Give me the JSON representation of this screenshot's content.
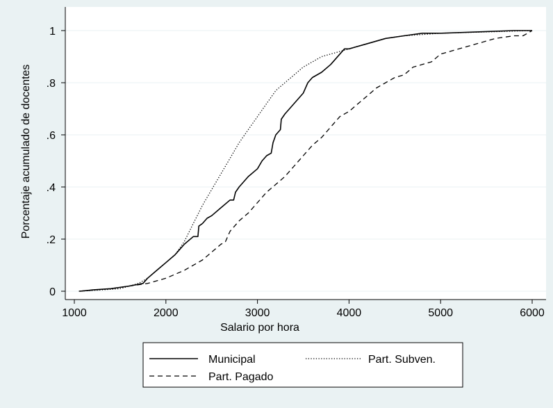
{
  "chart_data": {
    "type": "line",
    "title": "",
    "xlabel": "Salario por hora",
    "ylabel": "Porcentaje acumulado de docentes",
    "xlim": [
      1000,
      6000
    ],
    "ylim": [
      0,
      1
    ],
    "x_ticks": [
      1000,
      2000,
      3000,
      4000,
      5000,
      6000
    ],
    "x_tick_labels": [
      "1000",
      "2000",
      "3000",
      "4000",
      "5000",
      "6000"
    ],
    "y_ticks": [
      0,
      0.2,
      0.4,
      0.6,
      0.8,
      1
    ],
    "y_tick_labels": [
      "0",
      ".2",
      ".4",
      ".6",
      ".8",
      "1"
    ],
    "grid": "horizontal",
    "legend_position": "bottom",
    "colors": {
      "background": "#eaf2f3",
      "plot": "#ffffff",
      "line": "#000000",
      "grid": "#eaf2f3"
    },
    "series": [
      {
        "name": "Municipal",
        "style": "solid",
        "points": [
          [
            1060,
            0
          ],
          [
            1200,
            0.005
          ],
          [
            1400,
            0.01
          ],
          [
            1600,
            0.02
          ],
          [
            1750,
            0.03
          ],
          [
            1800,
            0.05
          ],
          [
            1900,
            0.08
          ],
          [
            2000,
            0.11
          ],
          [
            2100,
            0.14
          ],
          [
            2200,
            0.18
          ],
          [
            2300,
            0.21
          ],
          [
            2350,
            0.21
          ],
          [
            2360,
            0.25
          ],
          [
            2400,
            0.26
          ],
          [
            2450,
            0.28
          ],
          [
            2500,
            0.29
          ],
          [
            2600,
            0.32
          ],
          [
            2700,
            0.35
          ],
          [
            2740,
            0.35
          ],
          [
            2760,
            0.38
          ],
          [
            2800,
            0.4
          ],
          [
            2900,
            0.44
          ],
          [
            3000,
            0.47
          ],
          [
            3050,
            0.5
          ],
          [
            3100,
            0.52
          ],
          [
            3150,
            0.53
          ],
          [
            3170,
            0.57
          ],
          [
            3200,
            0.6
          ],
          [
            3250,
            0.62
          ],
          [
            3260,
            0.66
          ],
          [
            3300,
            0.68
          ],
          [
            3400,
            0.72
          ],
          [
            3500,
            0.76
          ],
          [
            3550,
            0.8
          ],
          [
            3600,
            0.82
          ],
          [
            3700,
            0.84
          ],
          [
            3800,
            0.87
          ],
          [
            3850,
            0.89
          ],
          [
            3900,
            0.91
          ],
          [
            3950,
            0.93
          ],
          [
            4000,
            0.93
          ],
          [
            4200,
            0.95
          ],
          [
            4400,
            0.97
          ],
          [
            4600,
            0.98
          ],
          [
            4800,
            0.99
          ],
          [
            5000,
            0.99
          ],
          [
            5400,
            0.995
          ],
          [
            5800,
            1.0
          ],
          [
            6000,
            1.0
          ]
        ]
      },
      {
        "name": "Part. Subven.",
        "style": "dotted",
        "points": [
          [
            1050,
            0
          ],
          [
            1300,
            0.005
          ],
          [
            1500,
            0.01
          ],
          [
            1700,
            0.03
          ],
          [
            1800,
            0.05
          ],
          [
            1900,
            0.08
          ],
          [
            2000,
            0.11
          ],
          [
            2100,
            0.14
          ],
          [
            2200,
            0.19
          ],
          [
            2300,
            0.26
          ],
          [
            2400,
            0.33
          ],
          [
            2500,
            0.39
          ],
          [
            2600,
            0.45
          ],
          [
            2700,
            0.51
          ],
          [
            2800,
            0.57
          ],
          [
            2900,
            0.62
          ],
          [
            3000,
            0.67
          ],
          [
            3100,
            0.72
          ],
          [
            3200,
            0.77
          ],
          [
            3300,
            0.8
          ],
          [
            3400,
            0.83
          ],
          [
            3500,
            0.86
          ],
          [
            3600,
            0.88
          ],
          [
            3700,
            0.9
          ],
          [
            3800,
            0.91
          ],
          [
            3900,
            0.92
          ],
          [
            4000,
            0.93
          ],
          [
            4200,
            0.95
          ],
          [
            4400,
            0.97
          ],
          [
            4600,
            0.98
          ],
          [
            5000,
            0.99
          ],
          [
            5500,
            0.995
          ],
          [
            6000,
            1.0
          ]
        ]
      },
      {
        "name": "Part. Pagado",
        "style": "dashed",
        "points": [
          [
            1050,
            0
          ],
          [
            1400,
            0.01
          ],
          [
            1800,
            0.03
          ],
          [
            2000,
            0.05
          ],
          [
            2200,
            0.08
          ],
          [
            2400,
            0.12
          ],
          [
            2500,
            0.15
          ],
          [
            2600,
            0.18
          ],
          [
            2650,
            0.19
          ],
          [
            2700,
            0.23
          ],
          [
            2800,
            0.27
          ],
          [
            2900,
            0.3
          ],
          [
            3000,
            0.34
          ],
          [
            3050,
            0.36
          ],
          [
            3100,
            0.38
          ],
          [
            3200,
            0.41
          ],
          [
            3300,
            0.44
          ],
          [
            3400,
            0.48
          ],
          [
            3500,
            0.52
          ],
          [
            3600,
            0.56
          ],
          [
            3700,
            0.59
          ],
          [
            3800,
            0.63
          ],
          [
            3900,
            0.67
          ],
          [
            4000,
            0.69
          ],
          [
            4100,
            0.72
          ],
          [
            4200,
            0.75
          ],
          [
            4300,
            0.78
          ],
          [
            4400,
            0.8
          ],
          [
            4500,
            0.82
          ],
          [
            4600,
            0.83
          ],
          [
            4700,
            0.86
          ],
          [
            4800,
            0.87
          ],
          [
            4900,
            0.88
          ],
          [
            5000,
            0.91
          ],
          [
            5200,
            0.93
          ],
          [
            5400,
            0.95
          ],
          [
            5600,
            0.97
          ],
          [
            5800,
            0.98
          ],
          [
            5900,
            0.98
          ],
          [
            5950,
            0.99
          ],
          [
            6000,
            1.0
          ]
        ]
      }
    ]
  }
}
